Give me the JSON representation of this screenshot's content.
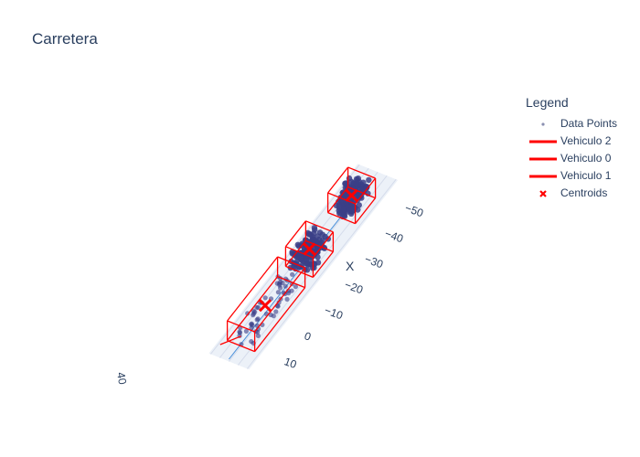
{
  "title": "Carretera",
  "legend": {
    "title": "Legend",
    "items": [
      {
        "label": "Data Points",
        "kind": "marker-dot",
        "color": "#8a8fb0"
      },
      {
        "label": "Vehiculo 2",
        "kind": "line",
        "color": "#ff0000"
      },
      {
        "label": "Vehiculo 0",
        "kind": "line",
        "color": "#ff0000"
      },
      {
        "label": "Vehiculo 1",
        "kind": "line",
        "color": "#ff0000"
      },
      {
        "label": "Centroids",
        "kind": "marker-x",
        "color": "#ff0000"
      }
    ]
  },
  "chart_data": {
    "type": "scatter3d",
    "title": "Carretera",
    "x_axis": {
      "label": "X",
      "ticks": [
        10,
        0,
        -10,
        -20,
        -30,
        -40,
        -50
      ],
      "tick_labels": [
        "10",
        "0",
        "−10",
        "−20",
        "−30",
        "−40",
        "−50"
      ]
    },
    "series": [
      {
        "name": "Data Points",
        "color": "#3b3f87"
      },
      {
        "name": "Vehiculo 2",
        "color": "#ff0000",
        "x_range": [
          -48,
          -38
        ]
      },
      {
        "name": "Vehiculo 0",
        "color": "#ff0000",
        "x_range": [
          -27,
          -17
        ]
      },
      {
        "name": "Vehiculo 1",
        "color": "#ff0000",
        "x_range": [
          -13,
          12
        ]
      },
      {
        "name": "Centroids",
        "color": "#ff0000",
        "x": [
          -43,
          -22,
          0
        ]
      }
    ],
    "colors": {
      "points": "#3b3f87",
      "boxes": "#ff0000",
      "road": "#e5ecf6",
      "axis_line": "#4a90d9"
    }
  }
}
